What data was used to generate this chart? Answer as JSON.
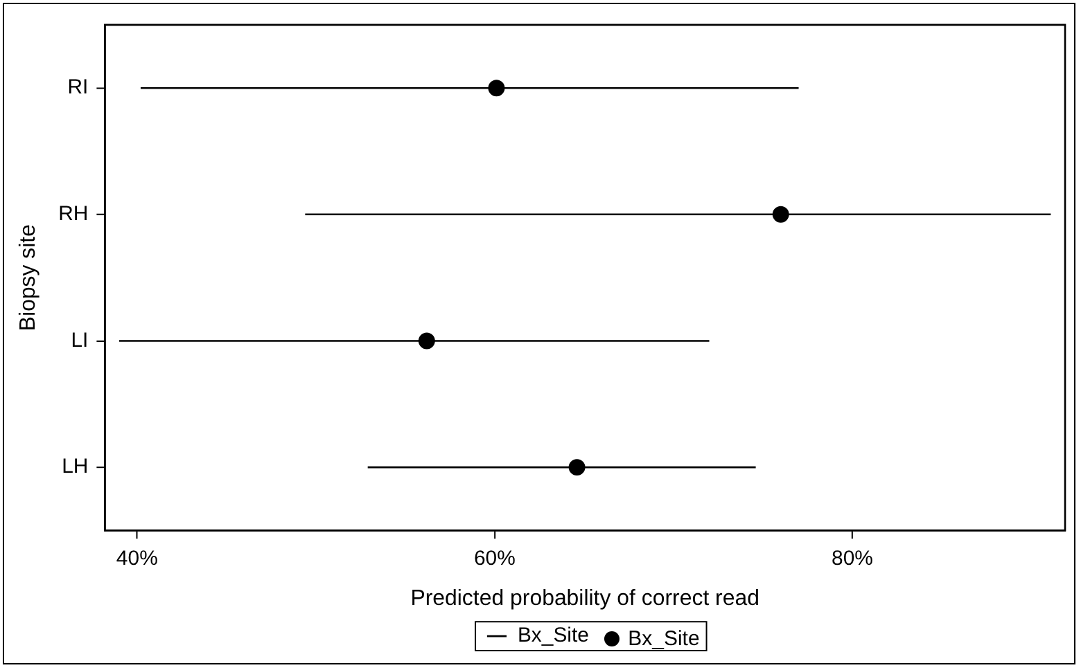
{
  "chart_data": {
    "type": "scatter",
    "orientation": "horizontal",
    "xlabel": "Predicted probability of correct read",
    "ylabel": "Biopsy site",
    "categories": [
      "RI",
      "RH",
      "LI",
      "LH"
    ],
    "series": [
      {
        "name": "Bx_Site",
        "color": "#000000",
        "values": [
          60.1,
          76.0,
          56.2,
          64.6
        ],
        "errors": [
          [
            40.2,
            77.0
          ],
          [
            49.4,
            91.1
          ],
          [
            39.0,
            72.0
          ],
          [
            52.9,
            74.6
          ]
        ]
      }
    ],
    "xlim": [
      38.2,
      91.9
    ],
    "xticks": [
      {
        "value": 40,
        "label": "40%"
      },
      {
        "value": 60,
        "label": "60%"
      },
      {
        "value": 80,
        "label": "80%"
      }
    ],
    "grid": false,
    "legend": "bottom",
    "marker": "circle"
  }
}
